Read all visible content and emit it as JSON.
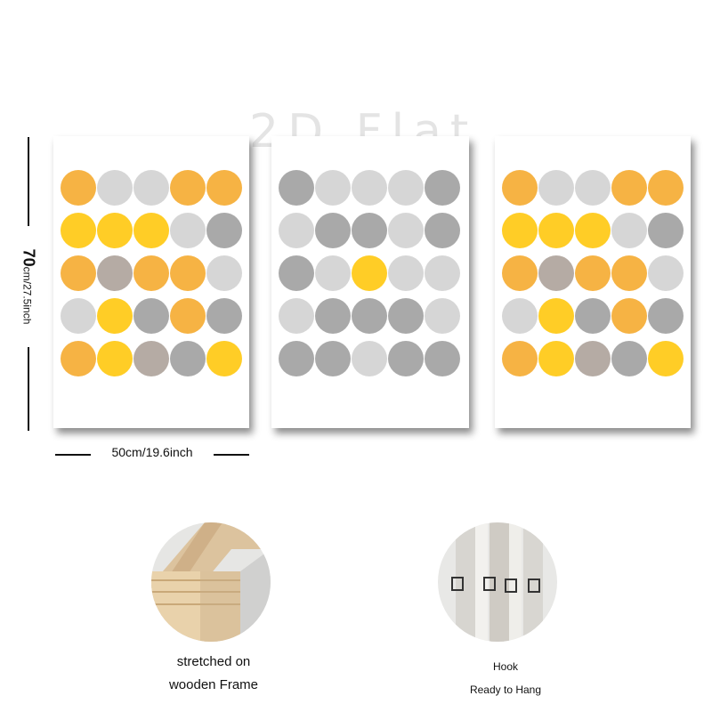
{
  "watermark": "2D Flat",
  "dimensions": {
    "height_value": "70",
    "height_unit": "cm/27.5inch",
    "width_value": "50",
    "width_unit": "cm/19.6inch"
  },
  "panels": [
    {
      "name": "left-panel",
      "palette": "yellow-grey"
    },
    {
      "name": "center-panel",
      "palette": "grey"
    },
    {
      "name": "right-panel",
      "palette": "yellow-grey"
    }
  ],
  "features": [
    {
      "label_line1": "stretched on",
      "label_line2": "wooden Frame"
    },
    {
      "label_line1": "Hook",
      "label_line2": "Ready to Hang"
    }
  ],
  "colors": {
    "yellow": "#ffc400",
    "orange": "#f5a623",
    "grey": "#9a9a9a",
    "light_grey": "#cfcfcf",
    "taupe": "#a89c94"
  }
}
